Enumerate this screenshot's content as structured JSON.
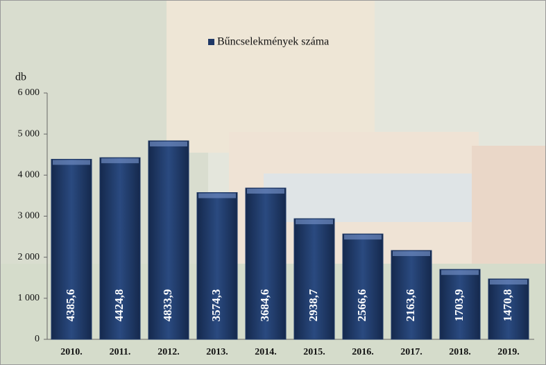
{
  "chart_data": {
    "type": "bar",
    "legend_label": "Bűncselekmények száma",
    "y_axis_label": "db",
    "categories": [
      "2010.",
      "2011.",
      "2012.",
      "2013.",
      "2014.",
      "2015.",
      "2016.",
      "2017.",
      "2018.",
      "2019."
    ],
    "values": [
      4385.6,
      4424.8,
      4833.9,
      3574.3,
      3684.6,
      2938.7,
      2566.6,
      2163.6,
      1703.9,
      1470.8
    ],
    "value_labels": [
      "4385,6",
      "4424,8",
      "4833,9",
      "3574,3",
      "3684,6",
      "2938,7",
      "2566,6",
      "2163,6",
      "1703,9",
      "1470,8"
    ],
    "color": "#1f3866",
    "ylim": [
      0,
      6000
    ],
    "yticks": [
      0,
      {
        "value": 1000,
        "label": "1 000"
      },
      {
        "value": 2000,
        "label": "2 000"
      },
      {
        "value": 3000,
        "label": "3 000"
      },
      {
        "value": 4000,
        "label": "4 000"
      },
      {
        "value": 5000,
        "label": "5 000"
      },
      {
        "value": 6000,
        "label": "6 000"
      }
    ]
  }
}
